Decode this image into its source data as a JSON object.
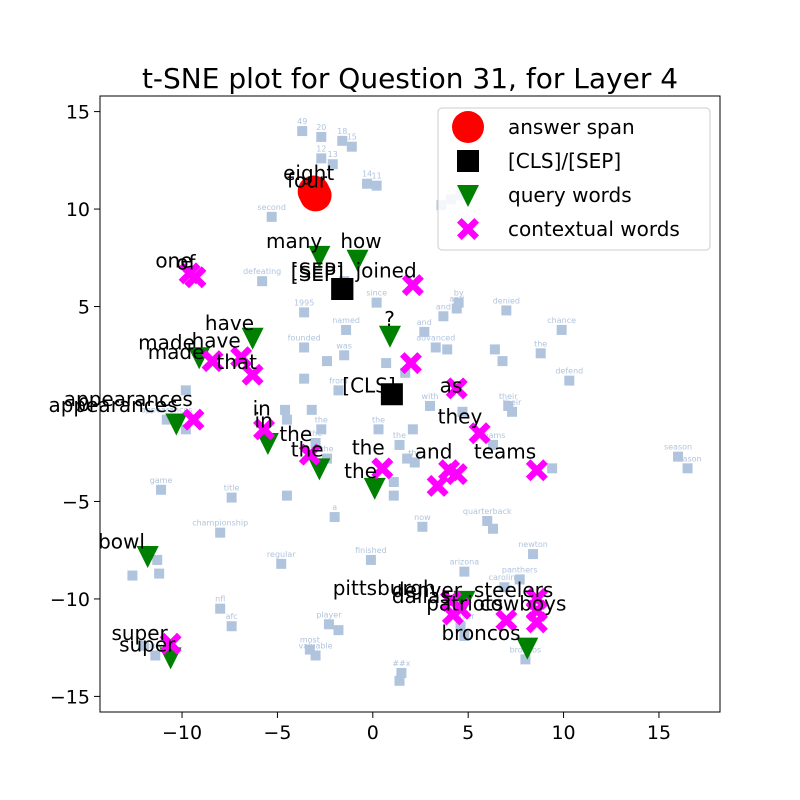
{
  "chart_data": {
    "type": "scatter",
    "title": "t-SNE plot for Question 31, for Layer 4",
    "xlim": [
      -14.3,
      18.2
    ],
    "ylim": [
      -15.8,
      15.8
    ],
    "x_ticks": [
      -10,
      -5,
      0,
      5,
      10,
      15
    ],
    "y_ticks": [
      -15,
      -10,
      -5,
      0,
      5,
      10,
      15
    ],
    "x_tick_labels": [
      "−10",
      "−5",
      "0",
      "5",
      "10",
      "15"
    ],
    "y_tick_labels": [
      "−15",
      "−10",
      "−5",
      "0",
      "5",
      "10",
      "15"
    ],
    "legend": {
      "position": "top-right",
      "entries": [
        {
          "label": "answer span",
          "marker": "circle",
          "color": "#ff0000"
        },
        {
          "label": "[CLS]/[SEP]",
          "marker": "square",
          "color": "#000000"
        },
        {
          "label": "query words",
          "marker": "triangle-down",
          "color": "#008000"
        },
        {
          "label": "contextual words",
          "marker": "x",
          "color": "#ff00ff"
        }
      ]
    },
    "colors": {
      "background_points": "#b0c4de",
      "answer": "#ff0000",
      "cls_sep": "#000000",
      "query": "#008000",
      "contextual": "#ff00ff"
    },
    "background_points": [
      {
        "x": -3.7,
        "y": 14.0,
        "label": "49"
      },
      {
        "x": -2.7,
        "y": 13.7,
        "label": "20"
      },
      {
        "x": -1.6,
        "y": 13.5,
        "label": "18"
      },
      {
        "x": -1.1,
        "y": 13.2,
        "label": "15"
      },
      {
        "x": -2.7,
        "y": 12.6,
        "label": "12"
      },
      {
        "x": -2.1,
        "y": 12.3,
        "label": "13"
      },
      {
        "x": -0.3,
        "y": 11.3,
        "label": "14"
      },
      {
        "x": 0.2,
        "y": 11.2,
        "label": "11"
      },
      {
        "x": -5.3,
        "y": 9.6,
        "label": "second"
      },
      {
        "x": 3.6,
        "y": 10.2,
        "label": ""
      },
      {
        "x": 4.1,
        "y": 10.5,
        "label": ""
      },
      {
        "x": 4.6,
        "y": 10.7,
        "label": ""
      },
      {
        "x": -1.5,
        "y": 6.3,
        "label": ""
      },
      {
        "x": -5.8,
        "y": 6.3,
        "label": "defeating"
      },
      {
        "x": -3.6,
        "y": 4.7,
        "label": "1995"
      },
      {
        "x": 0.2,
        "y": 5.2,
        "label": "since"
      },
      {
        "x": 4.5,
        "y": 5.2,
        "label": "by"
      },
      {
        "x": 4.4,
        "y": 4.9,
        "label": "and"
      },
      {
        "x": 3.7,
        "y": 4.5,
        "label": "and"
      },
      {
        "x": 7.0,
        "y": 4.8,
        "label": "denied"
      },
      {
        "x": 9.9,
        "y": 3.8,
        "label": "chance"
      },
      {
        "x": -1.4,
        "y": 3.8,
        "label": "named"
      },
      {
        "x": 2.7,
        "y": 3.7,
        "label": "and"
      },
      {
        "x": -3.6,
        "y": 2.9,
        "label": "founded"
      },
      {
        "x": -1.5,
        "y": 2.5,
        "label": "was"
      },
      {
        "x": 3.3,
        "y": 2.9,
        "label": "advanced"
      },
      {
        "x": 3.9,
        "y": 2.8,
        "label": ""
      },
      {
        "x": 6.4,
        "y": 2.8,
        "label": ""
      },
      {
        "x": 8.8,
        "y": 2.6,
        "label": "the"
      },
      {
        "x": -2.4,
        "y": 2.2,
        "label": ""
      },
      {
        "x": 0.7,
        "y": 2.1,
        "label": ""
      },
      {
        "x": 6.8,
        "y": 2.2,
        "label": ""
      },
      {
        "x": -3.6,
        "y": 1.3,
        "label": ""
      },
      {
        "x": 1.7,
        "y": 1.6,
        "label": ""
      },
      {
        "x": 10.3,
        "y": 1.2,
        "label": "defend"
      },
      {
        "x": -1.8,
        "y": 0.7,
        "label": "from"
      },
      {
        "x": -9.8,
        "y": 0.7,
        "label": ""
      },
      {
        "x": -4.6,
        "y": -0.3,
        "label": ""
      },
      {
        "x": -3.2,
        "y": -0.3,
        "label": ""
      },
      {
        "x": 3.0,
        "y": -0.1,
        "label": "with"
      },
      {
        "x": 7.1,
        "y": -0.1,
        "label": "their"
      },
      {
        "x": 7.3,
        "y": -0.4,
        "label": "their"
      },
      {
        "x": 4.7,
        "y": -0.4,
        "label": ""
      },
      {
        "x": -4.5,
        "y": -0.8,
        "label": ""
      },
      {
        "x": -2.7,
        "y": -1.3,
        "label": "the"
      },
      {
        "x": 0.3,
        "y": -1.3,
        "label": "the"
      },
      {
        "x": 2.1,
        "y": -1.3,
        "label": ""
      },
      {
        "x": -10.8,
        "y": -0.8,
        "label": "appearances"
      },
      {
        "x": -9.8,
        "y": -1.3,
        "label": ""
      },
      {
        "x": -3.0,
        "y": -2.0,
        "label": "the"
      },
      {
        "x": 1.4,
        "y": -2.1,
        "label": "the"
      },
      {
        "x": 6.3,
        "y": -2.1,
        "label": "teams"
      },
      {
        "x": -2.4,
        "y": -2.8,
        "label": "the"
      },
      {
        "x": 1.8,
        "y": -2.8,
        "label": ""
      },
      {
        "x": 2.2,
        "y": -3.0,
        "label": "the"
      },
      {
        "x": 16.0,
        "y": -2.7,
        "label": "season"
      },
      {
        "x": 16.5,
        "y": -3.3,
        "label": "season"
      },
      {
        "x": 9.4,
        "y": -3.3,
        "label": ""
      },
      {
        "x": 1.1,
        "y": -4.0,
        "label": ""
      },
      {
        "x": -11.1,
        "y": -4.4,
        "label": "game"
      },
      {
        "x": -7.4,
        "y": -4.8,
        "label": "title"
      },
      {
        "x": -4.5,
        "y": -4.7,
        "label": ""
      },
      {
        "x": 1.1,
        "y": -4.7,
        "label": ""
      },
      {
        "x": -2.0,
        "y": -5.8,
        "label": "a"
      },
      {
        "x": 6.0,
        "y": -6.0,
        "label": "quarterback"
      },
      {
        "x": 6.3,
        "y": -6.4,
        "label": ""
      },
      {
        "x": -8.0,
        "y": -6.6,
        "label": "championship"
      },
      {
        "x": 2.6,
        "y": -6.3,
        "label": "now"
      },
      {
        "x": 8.4,
        "y": -7.7,
        "label": "newton"
      },
      {
        "x": -4.8,
        "y": -8.2,
        "label": "regular"
      },
      {
        "x": -0.1,
        "y": -8.0,
        "label": "finished"
      },
      {
        "x": -11.3,
        "y": -8.0,
        "label": ""
      },
      {
        "x": -11.2,
        "y": -8.7,
        "label": ""
      },
      {
        "x": -12.6,
        "y": -8.8,
        "label": ""
      },
      {
        "x": 4.8,
        "y": -8.6,
        "label": "arizona"
      },
      {
        "x": 7.7,
        "y": -9.0,
        "label": "panthers"
      },
      {
        "x": 6.9,
        "y": -9.4,
        "label": "carolina"
      },
      {
        "x": -8.0,
        "y": -10.5,
        "label": "nfl"
      },
      {
        "x": -7.4,
        "y": -11.4,
        "label": "afc"
      },
      {
        "x": -2.3,
        "y": -11.3,
        "label": "player"
      },
      {
        "x": -1.8,
        "y": -11.6,
        "label": ""
      },
      {
        "x": 4.6,
        "y": -11.4,
        "label": "denver"
      },
      {
        "x": 4.8,
        "y": -11.9,
        "label": ""
      },
      {
        "x": -12.0,
        "y": -12.4,
        "label": ""
      },
      {
        "x": -11.4,
        "y": -12.9,
        "label": "bowl"
      },
      {
        "x": -3.3,
        "y": -12.6,
        "label": "most"
      },
      {
        "x": -3.0,
        "y": -12.9,
        "label": "valuable"
      },
      {
        "x": 8.0,
        "y": -13.1,
        "label": "broncos"
      },
      {
        "x": 1.5,
        "y": -13.8,
        "label": "##x"
      },
      {
        "x": 1.4,
        "y": -14.2,
        "label": ""
      }
    ],
    "answer_span": [
      {
        "x": -3.1,
        "y": 10.9,
        "label": "eight"
      },
      {
        "x": -3.0,
        "y": 10.7,
        "label": "four"
      }
    ],
    "cls_sep": [
      {
        "x": -1.6,
        "y": 5.9,
        "label": "[SEP]"
      },
      {
        "x": -1.6,
        "y": 5.9,
        "label": "[SEP]"
      },
      {
        "x": 1.0,
        "y": 0.5,
        "label": "[CLS]"
      }
    ],
    "query_words": [
      {
        "x": -2.8,
        "y": 7.6,
        "label": "many"
      },
      {
        "x": -0.8,
        "y": 7.4,
        "label": "how"
      },
      {
        "x": 0.9,
        "y": 3.5,
        "label": "?"
      },
      {
        "x": -6.3,
        "y": 3.4,
        "label": "have"
      },
      {
        "x": -9.1,
        "y": 2.4,
        "label": "made"
      },
      {
        "x": -10.3,
        "y": -1.0,
        "label": "appearances"
      },
      {
        "x": -5.5,
        "y": -2.0,
        "label": "in"
      },
      {
        "x": -2.8,
        "y": -3.3,
        "label": "the"
      },
      {
        "x": 0.1,
        "y": -4.3,
        "label": "the"
      },
      {
        "x": -11.8,
        "y": -7.8,
        "label": "bowl"
      },
      {
        "x": -10.6,
        "y": -13.0,
        "label": "super"
      },
      {
        "x": 4.8,
        "y": -10.1,
        "label": "steelers"
      },
      {
        "x": 8.1,
        "y": -12.5,
        "label": "broncos"
      }
    ],
    "contextual_words": [
      {
        "x": -9.6,
        "y": 6.7,
        "label": "of"
      },
      {
        "x": -9.3,
        "y": 6.5,
        "label": "one"
      },
      {
        "x": 2.1,
        "y": 6.1,
        "label": "joined"
      },
      {
        "x": -8.4,
        "y": 2.2,
        "label": "made"
      },
      {
        "x": -6.9,
        "y": 2.4,
        "label": "have"
      },
      {
        "x": -6.3,
        "y": 1.5,
        "label": "that"
      },
      {
        "x": 2.0,
        "y": 2.1,
        "label": "?"
      },
      {
        "x": 4.4,
        "y": 0.8,
        "label": "as"
      },
      {
        "x": -9.4,
        "y": -0.8,
        "label": "appearances"
      },
      {
        "x": -5.7,
        "y": -1.3,
        "label": "in"
      },
      {
        "x": 5.6,
        "y": -1.5,
        "label": "they"
      },
      {
        "x": -3.3,
        "y": -2.6,
        "label": "the"
      },
      {
        "x": 0.5,
        "y": -3.3,
        "label": "the"
      },
      {
        "x": 4.0,
        "y": -3.4,
        "label": "and"
      },
      {
        "x": 4.4,
        "y": -3.6,
        "label": "and"
      },
      {
        "x": 3.4,
        "y": -4.2,
        "label": ""
      },
      {
        "x": 8.6,
        "y": -3.4,
        "label": "teams"
      },
      {
        "x": 4.1,
        "y": -10.1,
        "label": "pittsburgh"
      },
      {
        "x": 4.6,
        "y": -10.5,
        "label": "dallas"
      },
      {
        "x": 4.2,
        "y": -10.8,
        "label": "patriots"
      },
      {
        "x": 7.0,
        "y": -11.1,
        "label": "cowboys"
      },
      {
        "x": 8.6,
        "y": -10.0,
        "label": "steelers"
      },
      {
        "x": 8.6,
        "y": -10.6,
        "label": ""
      },
      {
        "x": 8.6,
        "y": -11.2,
        "label": ""
      },
      {
        "x": -10.6,
        "y": -12.3,
        "label": "super"
      }
    ],
    "word_labels": [
      {
        "x": -4.7,
        "y": 11.5,
        "text": "eight"
      },
      {
        "x": -4.5,
        "y": 11.1,
        "text": "four"
      },
      {
        "x": -5.6,
        "y": 8.0,
        "text": "many"
      },
      {
        "x": -1.7,
        "y": 8.0,
        "text": "how"
      },
      {
        "x": -4.3,
        "y": 6.5,
        "text": "[SEP]"
      },
      {
        "x": -4.3,
        "y": 6.3,
        "text": "[SEP]"
      },
      {
        "x": -0.9,
        "y": 6.5,
        "text": "joined"
      },
      {
        "x": -11.4,
        "y": 7.0,
        "text": "one"
      },
      {
        "x": -10.3,
        "y": 6.9,
        "text": "of"
      },
      {
        "x": 0.6,
        "y": 4.0,
        "text": "?"
      },
      {
        "x": -8.8,
        "y": 3.8,
        "text": "have"
      },
      {
        "x": -12.3,
        "y": 2.8,
        "text": "made"
      },
      {
        "x": -9.5,
        "y": 2.9,
        "text": "have"
      },
      {
        "x": -11.8,
        "y": 2.3,
        "text": "made"
      },
      {
        "x": -8.2,
        "y": 1.8,
        "text": "that"
      },
      {
        "x": -1.6,
        "y": 0.6,
        "text": "[CLS]"
      },
      {
        "x": 3.5,
        "y": 0.6,
        "text": "as"
      },
      {
        "x": -16.2,
        "y": -0.1,
        "text": "appearances"
      },
      {
        "x": -17.0,
        "y": -0.4,
        "text": "appearances"
      },
      {
        "x": -6.3,
        "y": -0.6,
        "text": "in"
      },
      {
        "x": -6.2,
        "y": -1.2,
        "text": "in"
      },
      {
        "x": 3.4,
        "y": -1.0,
        "text": "they"
      },
      {
        "x": -4.9,
        "y": -1.9,
        "text": "the"
      },
      {
        "x": -4.3,
        "y": -2.7,
        "text": "the"
      },
      {
        "x": -1.1,
        "y": -2.6,
        "text": "the"
      },
      {
        "x": -1.5,
        "y": -3.8,
        "text": "the"
      },
      {
        "x": 2.2,
        "y": -2.8,
        "text": "and"
      },
      {
        "x": 5.3,
        "y": -2.8,
        "text": "teams"
      },
      {
        "x": -14.4,
        "y": -7.4,
        "text": "bowl"
      },
      {
        "x": -2.1,
        "y": -9.8,
        "text": "pittsburgh"
      },
      {
        "x": 1.0,
        "y": -9.9,
        "text": "denver"
      },
      {
        "x": 1.0,
        "y": -10.2,
        "text": "dallas"
      },
      {
        "x": 5.3,
        "y": -9.9,
        "text": "steelers"
      },
      {
        "x": 2.8,
        "y": -10.6,
        "text": "patriots"
      },
      {
        "x": 5.6,
        "y": -10.6,
        "text": "cowboys"
      },
      {
        "x": 3.6,
        "y": -12.1,
        "text": "broncos"
      },
      {
        "x": -13.7,
        "y": -12.1,
        "text": "super"
      },
      {
        "x": -13.3,
        "y": -12.7,
        "text": "super"
      }
    ]
  }
}
